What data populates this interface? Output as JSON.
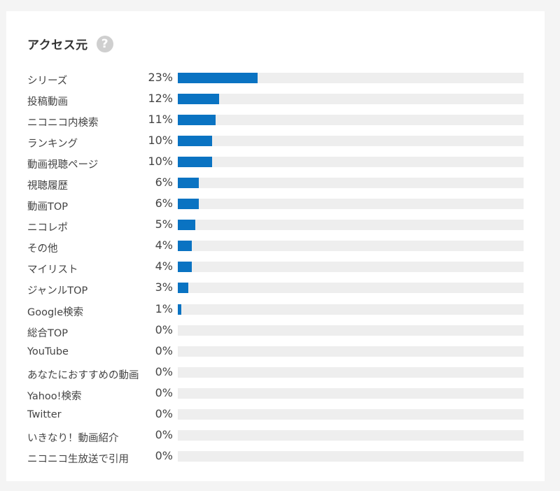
{
  "panel": {
    "title": "アクセス元",
    "help_glyph": "?"
  },
  "chart_data": {
    "type": "bar",
    "orientation": "horizontal",
    "title": "アクセス元",
    "ylim": [
      0,
      100
    ],
    "bar_color": "#0a73c2",
    "track_color": "#eeeeee",
    "categories": [
      "シリーズ",
      "投稿動画",
      "ニコニコ内検索",
      "ランキング",
      "動画視聴ページ",
      "視聴履歴",
      "動画TOP",
      "ニコレポ",
      "その他",
      "マイリスト",
      "ジャンルTOP",
      "Google検索",
      "総合TOP",
      "YouTube",
      "あなたにおすすめの動画",
      "Yahoo!検索",
      "Twitter",
      "いきなり！動画紹介",
      "ニコニコ生放送で引用"
    ],
    "values": [
      23,
      12,
      11,
      10,
      10,
      6,
      6,
      5,
      4,
      4,
      3,
      1,
      0,
      0,
      0,
      0,
      0,
      0,
      0
    ],
    "value_labels": [
      "23%",
      "12%",
      "11%",
      "10%",
      "10%",
      "6%",
      "6%",
      "5%",
      "4%",
      "4%",
      "3%",
      "1%",
      "0%",
      "0%",
      "0%",
      "0%",
      "0%",
      "0%",
      "0%"
    ]
  }
}
